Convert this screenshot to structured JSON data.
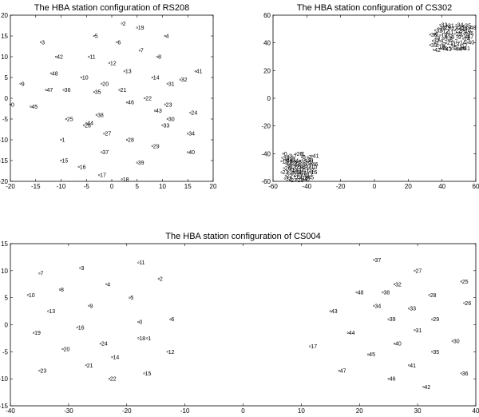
{
  "chart_data": [
    {
      "type": "scatter",
      "title": "The HBA station configuration of RS208",
      "xlim": [
        -20,
        20
      ],
      "ylim": [
        -20,
        20
      ],
      "xticks": [
        -20,
        -15,
        -10,
        -5,
        0,
        5,
        10,
        15,
        20
      ],
      "yticks": [
        -20,
        -15,
        -10,
        -5,
        0,
        5,
        10,
        15,
        20
      ],
      "xtick_labels": [
        "-20",
        "-15",
        "-10",
        "-5",
        "0",
        "5",
        "10",
        "15",
        "20"
      ],
      "ytick_labels": [
        "-20",
        "-15",
        "-10",
        "-5",
        "0",
        "5",
        "10",
        "15",
        "20"
      ],
      "grid": false,
      "points": [
        {
          "label": "0",
          "x": -20.0,
          "y": -1.5
        },
        {
          "label": "1",
          "x": -10.0,
          "y": -10.0
        },
        {
          "label": "2",
          "x": 2.0,
          "y": 18.0
        },
        {
          "label": "3",
          "x": -14.0,
          "y": 13.5
        },
        {
          "label": "4",
          "x": 10.5,
          "y": 15.0
        },
        {
          "label": "5",
          "x": -3.5,
          "y": 15.0
        },
        {
          "label": "6",
          "x": 1.0,
          "y": 13.5
        },
        {
          "label": "7",
          "x": 5.5,
          "y": 11.5
        },
        {
          "label": "8",
          "x": 9.0,
          "y": 10.0
        },
        {
          "label": "9",
          "x": -18.0,
          "y": 3.5
        },
        {
          "label": "10",
          "x": -6.0,
          "y": 5.0
        },
        {
          "label": "11",
          "x": -4.5,
          "y": 10.0
        },
        {
          "label": "12",
          "x": -0.5,
          "y": 8.5
        },
        {
          "label": "13",
          "x": 2.5,
          "y": 6.5
        },
        {
          "label": "14",
          "x": 8.0,
          "y": 5.0
        },
        {
          "label": "15",
          "x": -10.0,
          "y": -15.0
        },
        {
          "label": "16",
          "x": -6.5,
          "y": -16.5
        },
        {
          "label": "17",
          "x": -2.5,
          "y": -18.5
        },
        {
          "label": "18",
          "x": 2.0,
          "y": -19.5
        },
        {
          "label": "19",
          "x": 5.0,
          "y": 17.0
        },
        {
          "label": "20",
          "x": -2.0,
          "y": 3.5
        },
        {
          "label": "21",
          "x": 1.5,
          "y": 2.0
        },
        {
          "label": "22",
          "x": 6.5,
          "y": 0.0
        },
        {
          "label": "23",
          "x": 10.5,
          "y": -1.5
        },
        {
          "label": "24",
          "x": 15.5,
          "y": -3.5
        },
        {
          "label": "25",
          "x": -9.0,
          "y": -5.0
        },
        {
          "label": "26",
          "x": -5.5,
          "y": -6.5
        },
        {
          "label": "27",
          "x": -1.5,
          "y": -8.5
        },
        {
          "label": "28",
          "x": 3.0,
          "y": -10.0
        },
        {
          "label": "29",
          "x": 8.0,
          "y": -11.5
        },
        {
          "label": "30",
          "x": 11.0,
          "y": -5.0
        },
        {
          "label": "31",
          "x": 11.0,
          "y": 3.5
        },
        {
          "label": "32",
          "x": 13.5,
          "y": 4.5
        },
        {
          "label": "33",
          "x": 10.0,
          "y": -6.5
        },
        {
          "label": "34",
          "x": 15.0,
          "y": -8.5
        },
        {
          "label": "35",
          "x": -3.5,
          "y": 1.5
        },
        {
          "label": "36",
          "x": -9.5,
          "y": 2.0
        },
        {
          "label": "37",
          "x": -2.0,
          "y": -13.0
        },
        {
          "label": "38",
          "x": -3.0,
          "y": -4.0
        },
        {
          "label": "39",
          "x": 5.0,
          "y": -15.5
        },
        {
          "label": "40",
          "x": 15.0,
          "y": -13.0
        },
        {
          "label": "41",
          "x": 16.5,
          "y": 6.5
        },
        {
          "label": "42",
          "x": -11.0,
          "y": 10.0
        },
        {
          "label": "43",
          "x": 8.5,
          "y": -3.0
        },
        {
          "label": "44",
          "x": -5.0,
          "y": -6.0
        },
        {
          "label": "45",
          "x": -16.0,
          "y": -2.0
        },
        {
          "label": "46",
          "x": 3.0,
          "y": -1.0
        },
        {
          "label": "47",
          "x": -13.0,
          "y": 2.0
        },
        {
          "label": "48",
          "x": -12.0,
          "y": 6.0
        }
      ]
    },
    {
      "type": "scatter",
      "title": "The HBA station configuration of CS302",
      "xlim": [
        -60,
        60
      ],
      "ylim": [
        -60,
        60
      ],
      "xticks": [
        -60,
        -40,
        -20,
        0,
        20,
        40,
        60
      ],
      "yticks": [
        -60,
        -40,
        -20,
        0,
        20,
        40,
        60
      ],
      "xtick_labels": [
        "-60",
        "-40",
        "-20",
        "0",
        "20",
        "40",
        "60"
      ],
      "ytick_labels": [
        "-60",
        "-40",
        "-20",
        "0",
        "20",
        "40",
        "60"
      ],
      "grid": false,
      "points": [
        {
          "label": "0",
          "x": 35.5,
          "y": 46.5
        },
        {
          "label": "1",
          "x": 36.0,
          "y": 40.0
        },
        {
          "label": "2",
          "x": 40.0,
          "y": 39.0
        },
        {
          "label": "3",
          "x": 36.5,
          "y": 43.5
        },
        {
          "label": "4",
          "x": 38.5,
          "y": 41.5
        },
        {
          "label": "5",
          "x": 41.0,
          "y": 43.0
        },
        {
          "label": "6",
          "x": 44.0,
          "y": 42.0
        },
        {
          "label": "7",
          "x": 47.0,
          "y": 41.0
        },
        {
          "label": "8",
          "x": 45.0,
          "y": 44.0
        },
        {
          "label": "9",
          "x": 49.0,
          "y": 44.0
        },
        {
          "label": "10",
          "x": 47.5,
          "y": 46.5
        },
        {
          "label": "11",
          "x": 43.0,
          "y": 47.5
        },
        {
          "label": "12",
          "x": 40.0,
          "y": 48.5
        },
        {
          "label": "13",
          "x": 46.0,
          "y": 39.0
        },
        {
          "label": "14",
          "x": 50.0,
          "y": 40.5
        },
        {
          "label": "15",
          "x": 52.0,
          "y": 45.0
        },
        {
          "label": "16",
          "x": 53.0,
          "y": 49.0
        },
        {
          "label": "17",
          "x": 51.0,
          "y": 38.0
        },
        {
          "label": "18",
          "x": 37.5,
          "y": 37.5
        },
        {
          "label": "19",
          "x": 39.0,
          "y": 45.5
        },
        {
          "label": "20",
          "x": 42.0,
          "y": 45.0
        },
        {
          "label": "21",
          "x": 42.5,
          "y": 40.0
        },
        {
          "label": "22",
          "x": 47.5,
          "y": 49.0
        },
        {
          "label": "23",
          "x": 50.0,
          "y": 47.5
        },
        {
          "label": "24",
          "x": 52.5,
          "y": 43.0
        },
        {
          "label": "25",
          "x": 49.0,
          "y": 51.0
        },
        {
          "label": "26",
          "x": 51.0,
          "y": 50.5
        },
        {
          "label": "27",
          "x": 45.0,
          "y": 50.5
        },
        {
          "label": "28",
          "x": 44.5,
          "y": 37.0
        },
        {
          "label": "29",
          "x": 41.0,
          "y": 51.0
        },
        {
          "label": "30",
          "x": 38.0,
          "y": 50.5
        },
        {
          "label": "31",
          "x": 43.0,
          "y": 52.5
        },
        {
          "label": "32",
          "x": 36.0,
          "y": 49.0
        },
        {
          "label": "33",
          "x": 39.0,
          "y": 53.0
        },
        {
          "label": "34",
          "x": 48.5,
          "y": 53.0
        },
        {
          "label": "35",
          "x": 53.0,
          "y": 52.5
        },
        {
          "label": "36",
          "x": 54.5,
          "y": 47.0
        },
        {
          "label": "37",
          "x": 34.5,
          "y": 41.5
        },
        {
          "label": "38",
          "x": 33.0,
          "y": 46.0
        },
        {
          "label": "39",
          "x": 33.0,
          "y": 38.5
        },
        {
          "label": "40",
          "x": 55.0,
          "y": 40.5
        },
        {
          "label": "41",
          "x": 52.5,
          "y": 36.0
        },
        {
          "label": "42",
          "x": 35.0,
          "y": 35.0
        },
        {
          "label": "43",
          "x": 41.5,
          "y": 35.5
        },
        {
          "label": "44",
          "x": 47.5,
          "y": 35.5
        },
        {
          "label": "45",
          "x": 39.0,
          "y": 36.0
        },
        {
          "label": "46",
          "x": 50.0,
          "y": 36.0
        },
        {
          "label": "47",
          "x": 54.5,
          "y": 44.5
        },
        {
          "label": "48",
          "x": 56.0,
          "y": 51.0
        },
        {
          "label": "0",
          "x": -54.0,
          "y": -40.0
        },
        {
          "label": "1",
          "x": -43.5,
          "y": -40.0
        },
        {
          "label": "2",
          "x": -39.5,
          "y": -42.5
        },
        {
          "label": "3",
          "x": -51.0,
          "y": -41.5
        },
        {
          "label": "4",
          "x": -51.5,
          "y": -48.0
        },
        {
          "label": "5",
          "x": -48.0,
          "y": -46.5
        },
        {
          "label": "6",
          "x": -45.5,
          "y": -46.0
        },
        {
          "label": "7",
          "x": -48.5,
          "y": -42.0
        },
        {
          "label": "8",
          "x": -43.0,
          "y": -42.5
        },
        {
          "label": "9",
          "x": -38.5,
          "y": -45.5
        },
        {
          "label": "10",
          "x": -38.0,
          "y": -49.5
        },
        {
          "label": "11",
          "x": -42.5,
          "y": -52.0
        },
        {
          "label": "12",
          "x": -45.0,
          "y": -49.0
        },
        {
          "label": "13",
          "x": -49.5,
          "y": -51.5
        },
        {
          "label": "14",
          "x": -52.5,
          "y": -47.0
        },
        {
          "label": "15",
          "x": -55.0,
          "y": -45.5
        },
        {
          "label": "16",
          "x": -38.0,
          "y": -53.5
        },
        {
          "label": "17",
          "x": -40.5,
          "y": -55.0
        },
        {
          "label": "18",
          "x": -43.5,
          "y": -57.5
        },
        {
          "label": "19",
          "x": -47.0,
          "y": -56.5
        },
        {
          "label": "20",
          "x": -46.5,
          "y": -40.0
        },
        {
          "label": "21",
          "x": -48.5,
          "y": -55.0
        },
        {
          "label": "22",
          "x": -52.5,
          "y": -56.0
        },
        {
          "label": "23",
          "x": -55.0,
          "y": -53.5
        },
        {
          "label": "24",
          "x": -46.5,
          "y": -49.0
        },
        {
          "label": "25",
          "x": -51.0,
          "y": -44.0
        },
        {
          "label": "26",
          "x": -53.5,
          "y": -50.5
        },
        {
          "label": "27",
          "x": -50.0,
          "y": -59.0
        },
        {
          "label": "28",
          "x": -46.0,
          "y": -59.0
        },
        {
          "label": "29",
          "x": -41.5,
          "y": -47.0
        },
        {
          "label": "30",
          "x": -40.5,
          "y": -44.5
        },
        {
          "label": "31",
          "x": -43.0,
          "y": -55.5
        },
        {
          "label": "32",
          "x": -39.5,
          "y": -51.5
        },
        {
          "label": "33",
          "x": -53.0,
          "y": -58.0
        },
        {
          "label": "34",
          "x": -49.0,
          "y": -45.0
        },
        {
          "label": "35",
          "x": -44.0,
          "y": -45.5
        },
        {
          "label": "36",
          "x": -51.0,
          "y": -53.0
        },
        {
          "label": "37",
          "x": -45.5,
          "y": -52.0
        },
        {
          "label": "38",
          "x": -54.5,
          "y": -43.0
        },
        {
          "label": "39",
          "x": -47.5,
          "y": -53.5
        },
        {
          "label": "40",
          "x": -42.0,
          "y": -49.0
        },
        {
          "label": "41",
          "x": -37.0,
          "y": -41.5
        },
        {
          "label": "42",
          "x": -42.0,
          "y": -58.5
        },
        {
          "label": "43",
          "x": -50.5,
          "y": -50.0
        },
        {
          "label": "44",
          "x": -48.0,
          "y": -48.0
        },
        {
          "label": "45",
          "x": -40.0,
          "y": -57.0
        },
        {
          "label": "46",
          "x": -37.5,
          "y": -47.5
        },
        {
          "label": "47",
          "x": -44.5,
          "y": -54.0
        },
        {
          "label": "48",
          "x": -52.5,
          "y": -45.0
        }
      ]
    },
    {
      "type": "scatter",
      "title": "The HBA station configuration of CS004",
      "xlim": [
        -40,
        40
      ],
      "ylim": [
        -15,
        15
      ],
      "xticks": [
        -40,
        -30,
        -20,
        -10,
        0,
        10,
        20,
        30,
        40
      ],
      "yticks": [
        -15,
        -10,
        -5,
        0,
        5,
        10,
        15
      ],
      "xtick_labels": [
        "-40",
        "-30",
        "-20",
        "-10",
        "0",
        "10",
        "20",
        "30",
        "40"
      ],
      "ytick_labels": [
        "-15",
        "-10",
        "-5",
        "0",
        "5",
        "10",
        "15"
      ],
      "grid": false,
      "points": [
        {
          "label": "0",
          "x": -18.0,
          "y": 0.5
        },
        {
          "label": "1",
          "x": -16.5,
          "y": -2.5
        },
        {
          "label": "2",
          "x": -14.5,
          "y": 8.5
        },
        {
          "label": "3",
          "x": -28.0,
          "y": 10.5
        },
        {
          "label": "4",
          "x": -23.5,
          "y": 7.5
        },
        {
          "label": "5",
          "x": -19.5,
          "y": 5.0
        },
        {
          "label": "6",
          "x": -12.5,
          "y": 1.0
        },
        {
          "label": "7",
          "x": -35.0,
          "y": 9.5
        },
        {
          "label": "8",
          "x": -31.5,
          "y": 6.5
        },
        {
          "label": "9",
          "x": -26.5,
          "y": 3.5
        },
        {
          "label": "10",
          "x": -37.0,
          "y": 5.5
        },
        {
          "label": "11",
          "x": -18.0,
          "y": 11.5
        },
        {
          "label": "12",
          "x": -13.0,
          "y": -5.0
        },
        {
          "label": "13",
          "x": -33.5,
          "y": 2.5
        },
        {
          "label": "14",
          "x": -22.5,
          "y": -6.0
        },
        {
          "label": "15",
          "x": -17.0,
          "y": -9.0
        },
        {
          "label": "16",
          "x": -28.5,
          "y": -0.5
        },
        {
          "label": "17",
          "x": 11.5,
          "y": -4.0
        },
        {
          "label": "18",
          "x": -18.0,
          "y": -2.5
        },
        {
          "label": "19",
          "x": -36.0,
          "y": -1.5
        },
        {
          "label": "20",
          "x": -31.0,
          "y": -4.5
        },
        {
          "label": "21",
          "x": -27.0,
          "y": -7.5
        },
        {
          "label": "22",
          "x": -23.0,
          "y": -10.0
        },
        {
          "label": "23",
          "x": -35.0,
          "y": -8.5
        },
        {
          "label": "24",
          "x": -24.5,
          "y": -3.5
        },
        {
          "label": "25",
          "x": 37.5,
          "y": 8.0
        },
        {
          "label": "26",
          "x": 38.0,
          "y": 4.0
        },
        {
          "label": "27",
          "x": 29.5,
          "y": 10.0
        },
        {
          "label": "28",
          "x": 32.0,
          "y": 5.5
        },
        {
          "label": "29",
          "x": 32.5,
          "y": 1.0
        },
        {
          "label": "30",
          "x": 36.0,
          "y": -3.0
        },
        {
          "label": "31",
          "x": 29.5,
          "y": -1.0
        },
        {
          "label": "32",
          "x": 26.0,
          "y": 7.5
        },
        {
          "label": "33",
          "x": 28.5,
          "y": 3.0
        },
        {
          "label": "34",
          "x": 22.5,
          "y": 3.5
        },
        {
          "label": "35",
          "x": 32.5,
          "y": -5.0
        },
        {
          "label": "36",
          "x": 37.5,
          "y": -9.0
        },
        {
          "label": "37",
          "x": 22.5,
          "y": 12.0
        },
        {
          "label": "38",
          "x": 24.0,
          "y": 6.0
        },
        {
          "label": "39",
          "x": 25.0,
          "y": 1.0
        },
        {
          "label": "40",
          "x": 26.0,
          "y": -3.5
        },
        {
          "label": "41",
          "x": 28.5,
          "y": -7.5
        },
        {
          "label": "42",
          "x": 31.0,
          "y": -11.5
        },
        {
          "label": "43",
          "x": 15.0,
          "y": 2.5
        },
        {
          "label": "44",
          "x": 18.0,
          "y": -1.5
        },
        {
          "label": "45",
          "x": 21.5,
          "y": -5.5
        },
        {
          "label": "46",
          "x": 25.0,
          "y": -10.0
        },
        {
          "label": "47",
          "x": 16.5,
          "y": -8.5
        },
        {
          "label": "48",
          "x": 19.5,
          "y": 6.0
        }
      ]
    }
  ]
}
